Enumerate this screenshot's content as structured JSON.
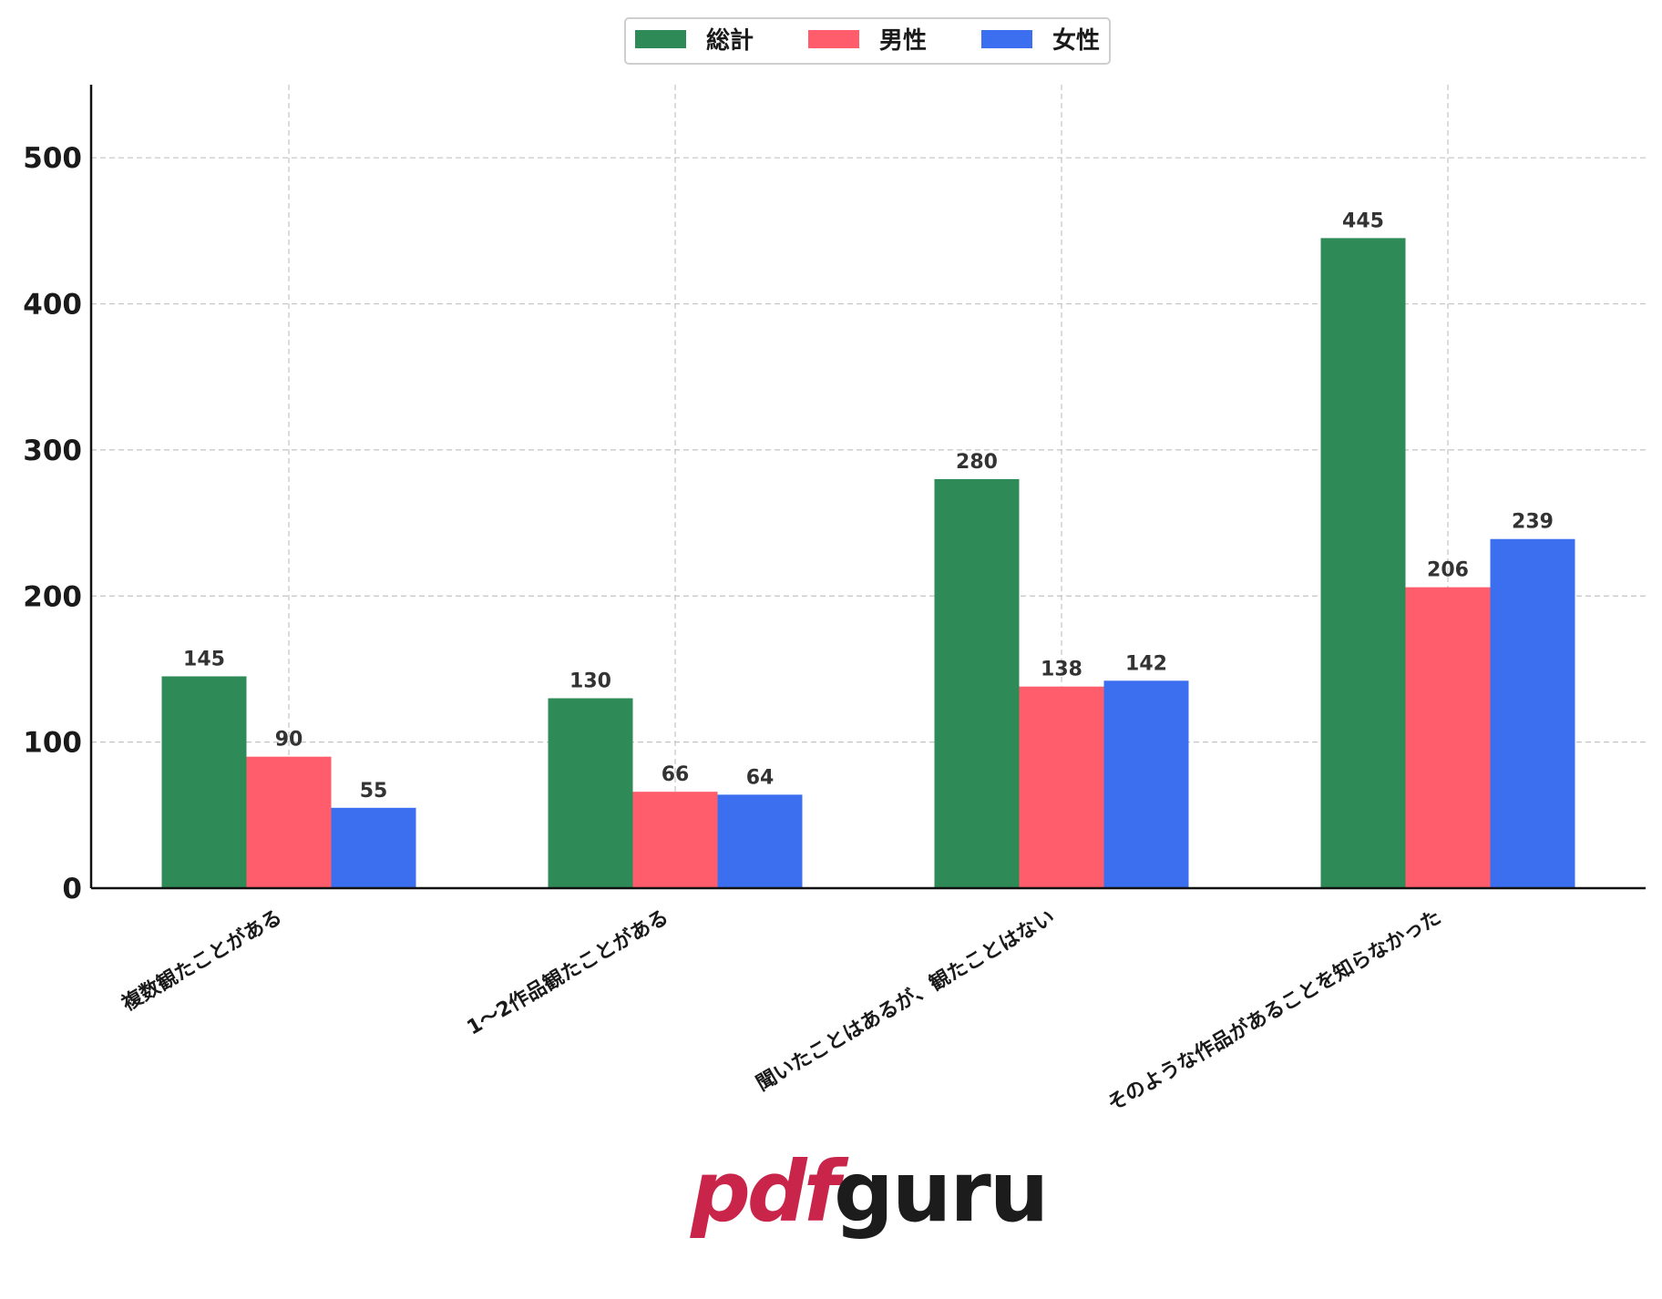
{
  "chart_data": {
    "type": "bar",
    "title": "",
    "xlabel": "",
    "ylabel": "",
    "categories": [
      "複数観たことがある",
      "1〜2作品観たことがある",
      "聞いたことはあるが、観たことはない",
      "そのような作品があることを知らなかった"
    ],
    "series": [
      {
        "name": "総計",
        "color": "#2e8b57",
        "values": [
          145,
          130,
          280,
          445
        ]
      },
      {
        "name": "男性",
        "color": "#ff5c6c",
        "values": [
          90,
          66,
          138,
          206
        ]
      },
      {
        "name": "女性",
        "color": "#3b6ff0",
        "values": [
          55,
          64,
          142,
          239
        ]
      }
    ],
    "ylim": [
      0,
      550
    ],
    "yticks": [
      0,
      100,
      200,
      300,
      400,
      500
    ],
    "grid": true,
    "legend_position": "top-center"
  },
  "watermark": {
    "part1": "pdf",
    "part2": "guru"
  }
}
